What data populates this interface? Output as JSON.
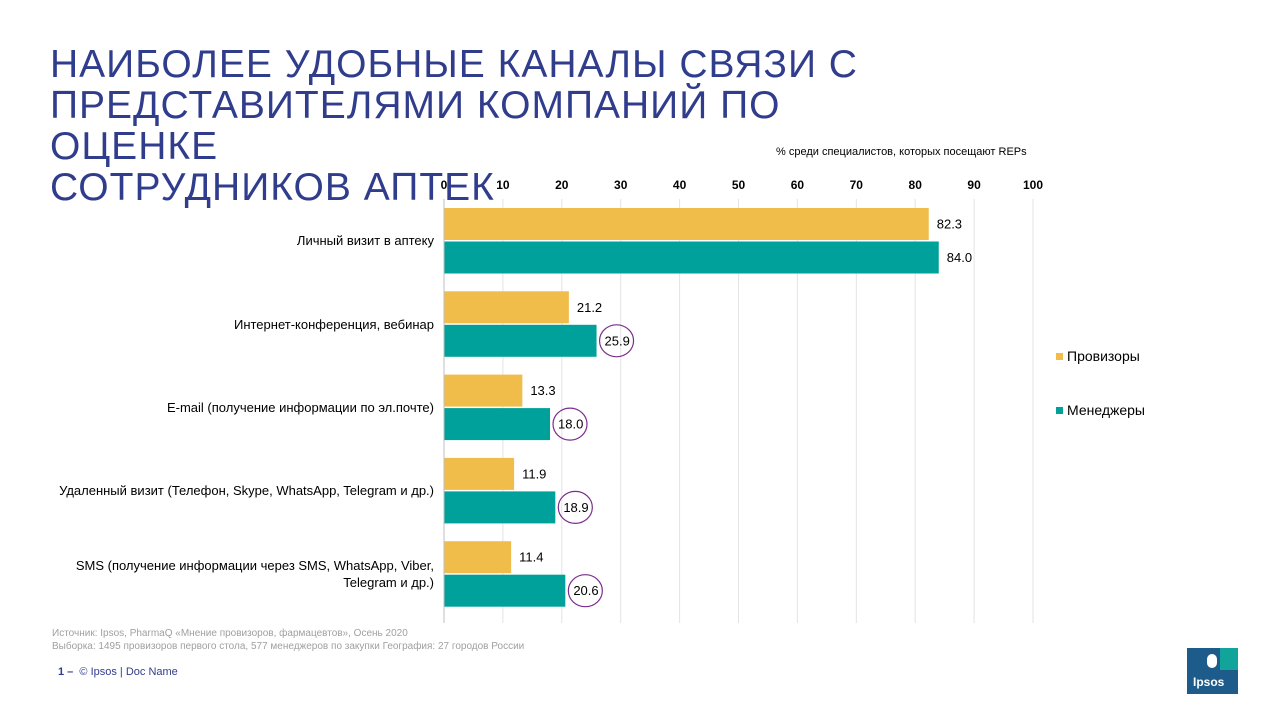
{
  "title_lines": [
    "НАИБОЛЕЕ УДОБНЫЕ КАНАЛЫ СВЯЗИ С",
    "ПРЕДСТАВИТЕЛЯМИ КОМПАНИЙ ПО ОЦЕНКЕ",
    "СОТРУДНИКОВ АПТЕК"
  ],
  "chart_data": {
    "type": "bar",
    "orientation": "horizontal",
    "subtitle": "% среди специалистов, которых посещают REPs",
    "categories": [
      "Личный визит в аптеку",
      "Интернет-конференция, вебинар",
      "E-mail (получение информации по эл.почте)",
      "Удаленный визит (Телефон, Skype, WhatsApp, Telegram и др.)",
      "SMS (получение информации через SMS, WhatsApp, Viber, Telegram и др.)"
    ],
    "series": [
      {
        "name": "Провизоры",
        "color": "#f0bd4a",
        "values": [
          82.3,
          21.2,
          13.3,
          11.9,
          11.4
        ],
        "labels": [
          "82.3",
          "21.2",
          "13.3",
          "11.9",
          "11.4"
        ]
      },
      {
        "name": "Менеджеры",
        "color": "#00a19a",
        "values": [
          84.0,
          25.9,
          18.0,
          18.9,
          20.6
        ],
        "labels": [
          "84.0",
          "25.9",
          "18.0",
          "18.9",
          "20.6"
        ],
        "circled": [
          false,
          true,
          true,
          true,
          true
        ]
      }
    ],
    "xlim": [
      0,
      100
    ],
    "xticks": [
      "0",
      "10",
      "20",
      "30",
      "40",
      "50",
      "60",
      "70",
      "80",
      "90",
      "100"
    ],
    "axis_position": "top",
    "grid": true,
    "legend_position": "right",
    "highlight_color": "#7b2d8e"
  },
  "source_lines": [
    "Источник: Ipsos, PharmaQ «Мнение провизоров, фармацевтов», Осень 2020",
    "Выборка: 1495 провизоров первого стола, 577 менеджеров по закупки География: 27 городов России"
  ],
  "footer": {
    "page": "1 –",
    "text": "© Ipsos | Doc Name"
  },
  "logo_text": "Ipsos"
}
